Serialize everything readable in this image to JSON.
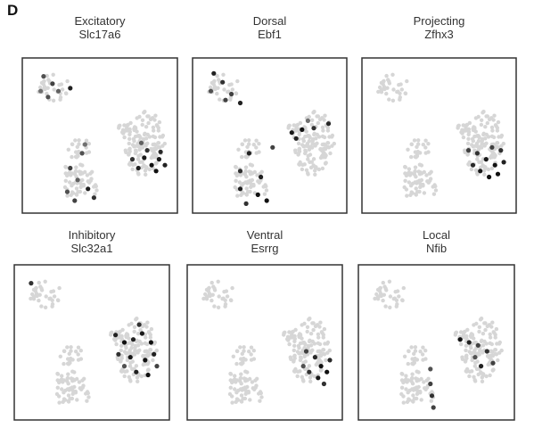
{
  "figure": {
    "panel_letter": "D"
  },
  "chart_data": [
    {
      "type": "scatter",
      "title": "Excitatory",
      "subtitle": "Slc17a6",
      "grid": false,
      "colors": {
        "background_cells": "#d6d6d6",
        "expression_low": "#b0b0b0",
        "expression_high": "#111111"
      },
      "points": [
        {
          "cluster": "A",
          "x": 0.12,
          "y": 0.1,
          "v": 0.6
        },
        {
          "cluster": "A",
          "x": 0.18,
          "y": 0.15,
          "v": 0.7
        },
        {
          "cluster": "A",
          "x": 0.22,
          "y": 0.2,
          "v": 0.5
        },
        {
          "cluster": "A",
          "x": 0.3,
          "y": 0.18,
          "v": 0.9
        },
        {
          "cluster": "A",
          "x": 0.1,
          "y": 0.2,
          "v": 0.4
        },
        {
          "cluster": "A",
          "x": 0.15,
          "y": 0.24,
          "v": 0.6
        },
        {
          "cluster": "B",
          "x": 0.38,
          "y": 0.62,
          "v": 0.6
        },
        {
          "cluster": "B",
          "x": 0.3,
          "y": 0.72,
          "v": 0.7
        },
        {
          "cluster": "B",
          "x": 0.35,
          "y": 0.8,
          "v": 0.5
        },
        {
          "cluster": "B",
          "x": 0.42,
          "y": 0.86,
          "v": 0.9
        },
        {
          "cluster": "B",
          "x": 0.46,
          "y": 0.92,
          "v": 0.8
        },
        {
          "cluster": "B",
          "x": 0.28,
          "y": 0.88,
          "v": 0.6
        },
        {
          "cluster": "B",
          "x": 0.4,
          "y": 0.56,
          "v": 0.4
        },
        {
          "cluster": "B",
          "x": 0.33,
          "y": 0.94,
          "v": 0.7
        },
        {
          "cluster": "C",
          "x": 0.8,
          "y": 0.65,
          "v": 0.95
        },
        {
          "cluster": "C",
          "x": 0.85,
          "y": 0.7,
          "v": 1.0
        },
        {
          "cluster": "C",
          "x": 0.9,
          "y": 0.66,
          "v": 0.95
        },
        {
          "cluster": "C",
          "x": 0.76,
          "y": 0.72,
          "v": 0.9
        },
        {
          "cluster": "C",
          "x": 0.88,
          "y": 0.74,
          "v": 1.0
        },
        {
          "cluster": "C",
          "x": 0.94,
          "y": 0.7,
          "v": 0.9
        },
        {
          "cluster": "C",
          "x": 0.82,
          "y": 0.6,
          "v": 0.8
        },
        {
          "cluster": "C",
          "x": 0.72,
          "y": 0.66,
          "v": 0.8
        },
        {
          "cluster": "C",
          "x": 0.91,
          "y": 0.61,
          "v": 0.85
        },
        {
          "cluster": "C",
          "x": 0.78,
          "y": 0.55,
          "v": 0.5
        }
      ]
    },
    {
      "type": "scatter",
      "title": "Dorsal",
      "subtitle": "Ebf1",
      "grid": false,
      "colors": {
        "background_cells": "#d6d6d6",
        "expression_low": "#b0b0b0",
        "expression_high": "#111111"
      },
      "points": [
        {
          "cluster": "A",
          "x": 0.12,
          "y": 0.08,
          "v": 0.9
        },
        {
          "cluster": "A",
          "x": 0.18,
          "y": 0.14,
          "v": 0.8
        },
        {
          "cluster": "A",
          "x": 0.24,
          "y": 0.22,
          "v": 0.7
        },
        {
          "cluster": "A",
          "x": 0.3,
          "y": 0.28,
          "v": 0.9
        },
        {
          "cluster": "A",
          "x": 0.1,
          "y": 0.2,
          "v": 0.6
        },
        {
          "cluster": "A",
          "x": 0.2,
          "y": 0.26,
          "v": 0.7
        },
        {
          "cluster": "B",
          "x": 0.36,
          "y": 0.62,
          "v": 0.9
        },
        {
          "cluster": "B",
          "x": 0.3,
          "y": 0.74,
          "v": 0.8
        },
        {
          "cluster": "B",
          "x": 0.44,
          "y": 0.78,
          "v": 0.9
        },
        {
          "cluster": "B",
          "x": 0.42,
          "y": 0.9,
          "v": 1.0
        },
        {
          "cluster": "B",
          "x": 0.48,
          "y": 0.94,
          "v": 1.0
        },
        {
          "cluster": "B",
          "x": 0.3,
          "y": 0.86,
          "v": 0.9
        },
        {
          "cluster": "B",
          "x": 0.52,
          "y": 0.58,
          "v": 0.7
        },
        {
          "cluster": "B",
          "x": 0.34,
          "y": 0.96,
          "v": 0.8
        },
        {
          "cluster": "C",
          "x": 0.65,
          "y": 0.48,
          "v": 0.95
        },
        {
          "cluster": "C",
          "x": 0.72,
          "y": 0.46,
          "v": 1.0
        },
        {
          "cluster": "C",
          "x": 0.8,
          "y": 0.45,
          "v": 0.8
        },
        {
          "cluster": "C",
          "x": 0.68,
          "y": 0.52,
          "v": 0.9
        },
        {
          "cluster": "C",
          "x": 0.9,
          "y": 0.42,
          "v": 0.85
        },
        {
          "cluster": "C",
          "x": 0.76,
          "y": 0.4,
          "v": 0.4
        }
      ]
    },
    {
      "type": "scatter",
      "title": "Projecting",
      "subtitle": "Zfhx3",
      "grid": false,
      "colors": {
        "background_cells": "#d6d6d6",
        "expression_low": "#b0b0b0",
        "expression_high": "#111111"
      },
      "points": [
        {
          "cluster": "C",
          "x": 0.7,
          "y": 0.6,
          "v": 0.7
        },
        {
          "cluster": "C",
          "x": 0.76,
          "y": 0.62,
          "v": 0.8
        },
        {
          "cluster": "C",
          "x": 0.82,
          "y": 0.66,
          "v": 0.95
        },
        {
          "cluster": "C",
          "x": 0.88,
          "y": 0.7,
          "v": 1.0
        },
        {
          "cluster": "C",
          "x": 0.84,
          "y": 0.78,
          "v": 1.0
        },
        {
          "cluster": "C",
          "x": 0.9,
          "y": 0.76,
          "v": 1.0
        },
        {
          "cluster": "C",
          "x": 0.94,
          "y": 0.68,
          "v": 0.9
        },
        {
          "cluster": "C",
          "x": 0.78,
          "y": 0.74,
          "v": 0.95
        },
        {
          "cluster": "C",
          "x": 0.92,
          "y": 0.6,
          "v": 0.8
        },
        {
          "cluster": "C",
          "x": 0.86,
          "y": 0.58,
          "v": 0.7
        },
        {
          "cluster": "C",
          "x": 0.73,
          "y": 0.7,
          "v": 0.85
        }
      ]
    },
    {
      "type": "scatter",
      "title": "Inhibitory",
      "subtitle": "Slc32a1",
      "grid": false,
      "colors": {
        "background_cells": "#d6d6d6",
        "expression_low": "#b0b0b0",
        "expression_high": "#111111"
      },
      "points": [
        {
          "cluster": "A",
          "x": 0.09,
          "y": 0.1,
          "v": 0.8
        },
        {
          "cluster": "C",
          "x": 0.66,
          "y": 0.45,
          "v": 0.9
        },
        {
          "cluster": "C",
          "x": 0.72,
          "y": 0.5,
          "v": 1.0
        },
        {
          "cluster": "C",
          "x": 0.78,
          "y": 0.48,
          "v": 0.9
        },
        {
          "cluster": "C",
          "x": 0.84,
          "y": 0.44,
          "v": 0.95
        },
        {
          "cluster": "C",
          "x": 0.9,
          "y": 0.5,
          "v": 1.0
        },
        {
          "cluster": "C",
          "x": 0.68,
          "y": 0.58,
          "v": 0.8
        },
        {
          "cluster": "C",
          "x": 0.76,
          "y": 0.6,
          "v": 0.95
        },
        {
          "cluster": "C",
          "x": 0.86,
          "y": 0.62,
          "v": 1.0
        },
        {
          "cluster": "C",
          "x": 0.92,
          "y": 0.58,
          "v": 0.9
        },
        {
          "cluster": "C",
          "x": 0.8,
          "y": 0.7,
          "v": 0.9
        },
        {
          "cluster": "C",
          "x": 0.88,
          "y": 0.72,
          "v": 1.0
        },
        {
          "cluster": "C",
          "x": 0.72,
          "y": 0.66,
          "v": 0.6
        },
        {
          "cluster": "C",
          "x": 0.94,
          "y": 0.66,
          "v": 0.7
        },
        {
          "cluster": "C",
          "x": 0.82,
          "y": 0.38,
          "v": 0.8
        }
      ]
    },
    {
      "type": "scatter",
      "title": "Ventral",
      "subtitle": "Esrrg",
      "grid": false,
      "colors": {
        "background_cells": "#d6d6d6",
        "expression_low": "#b0b0b0",
        "expression_high": "#111111"
      },
      "points": [
        {
          "cluster": "C",
          "x": 0.78,
          "y": 0.56,
          "v": 0.7
        },
        {
          "cluster": "C",
          "x": 0.84,
          "y": 0.6,
          "v": 0.85
        },
        {
          "cluster": "C",
          "x": 0.88,
          "y": 0.66,
          "v": 1.0
        },
        {
          "cluster": "C",
          "x": 0.92,
          "y": 0.7,
          "v": 1.0
        },
        {
          "cluster": "C",
          "x": 0.86,
          "y": 0.74,
          "v": 0.95
        },
        {
          "cluster": "C",
          "x": 0.8,
          "y": 0.7,
          "v": 0.8
        },
        {
          "cluster": "C",
          "x": 0.94,
          "y": 0.62,
          "v": 0.85
        },
        {
          "cluster": "C",
          "x": 0.76,
          "y": 0.66,
          "v": 0.6
        },
        {
          "cluster": "C",
          "x": 0.9,
          "y": 0.78,
          "v": 0.8
        }
      ]
    },
    {
      "type": "scatter",
      "title": "Local",
      "subtitle": "Nfib",
      "grid": false,
      "colors": {
        "background_cells": "#d6d6d6",
        "expression_low": "#b0b0b0",
        "expression_high": "#111111"
      },
      "points": [
        {
          "cluster": "C",
          "x": 0.66,
          "y": 0.48,
          "v": 1.0
        },
        {
          "cluster": "C",
          "x": 0.72,
          "y": 0.5,
          "v": 0.9
        },
        {
          "cluster": "C",
          "x": 0.78,
          "y": 0.52,
          "v": 0.7
        },
        {
          "cluster": "C",
          "x": 0.84,
          "y": 0.56,
          "v": 0.8
        },
        {
          "cluster": "C",
          "x": 0.8,
          "y": 0.66,
          "v": 0.9
        },
        {
          "cluster": "C",
          "x": 0.88,
          "y": 0.64,
          "v": 0.7
        },
        {
          "cluster": "C",
          "x": 0.76,
          "y": 0.6,
          "v": 0.6
        },
        {
          "cluster": "B",
          "x": 0.46,
          "y": 0.68,
          "v": 0.6
        },
        {
          "cluster": "B",
          "x": 0.46,
          "y": 0.78,
          "v": 0.7
        },
        {
          "cluster": "B",
          "x": 0.47,
          "y": 0.86,
          "v": 0.8
        },
        {
          "cluster": "B",
          "x": 0.48,
          "y": 0.94,
          "v": 0.7
        }
      ]
    }
  ]
}
